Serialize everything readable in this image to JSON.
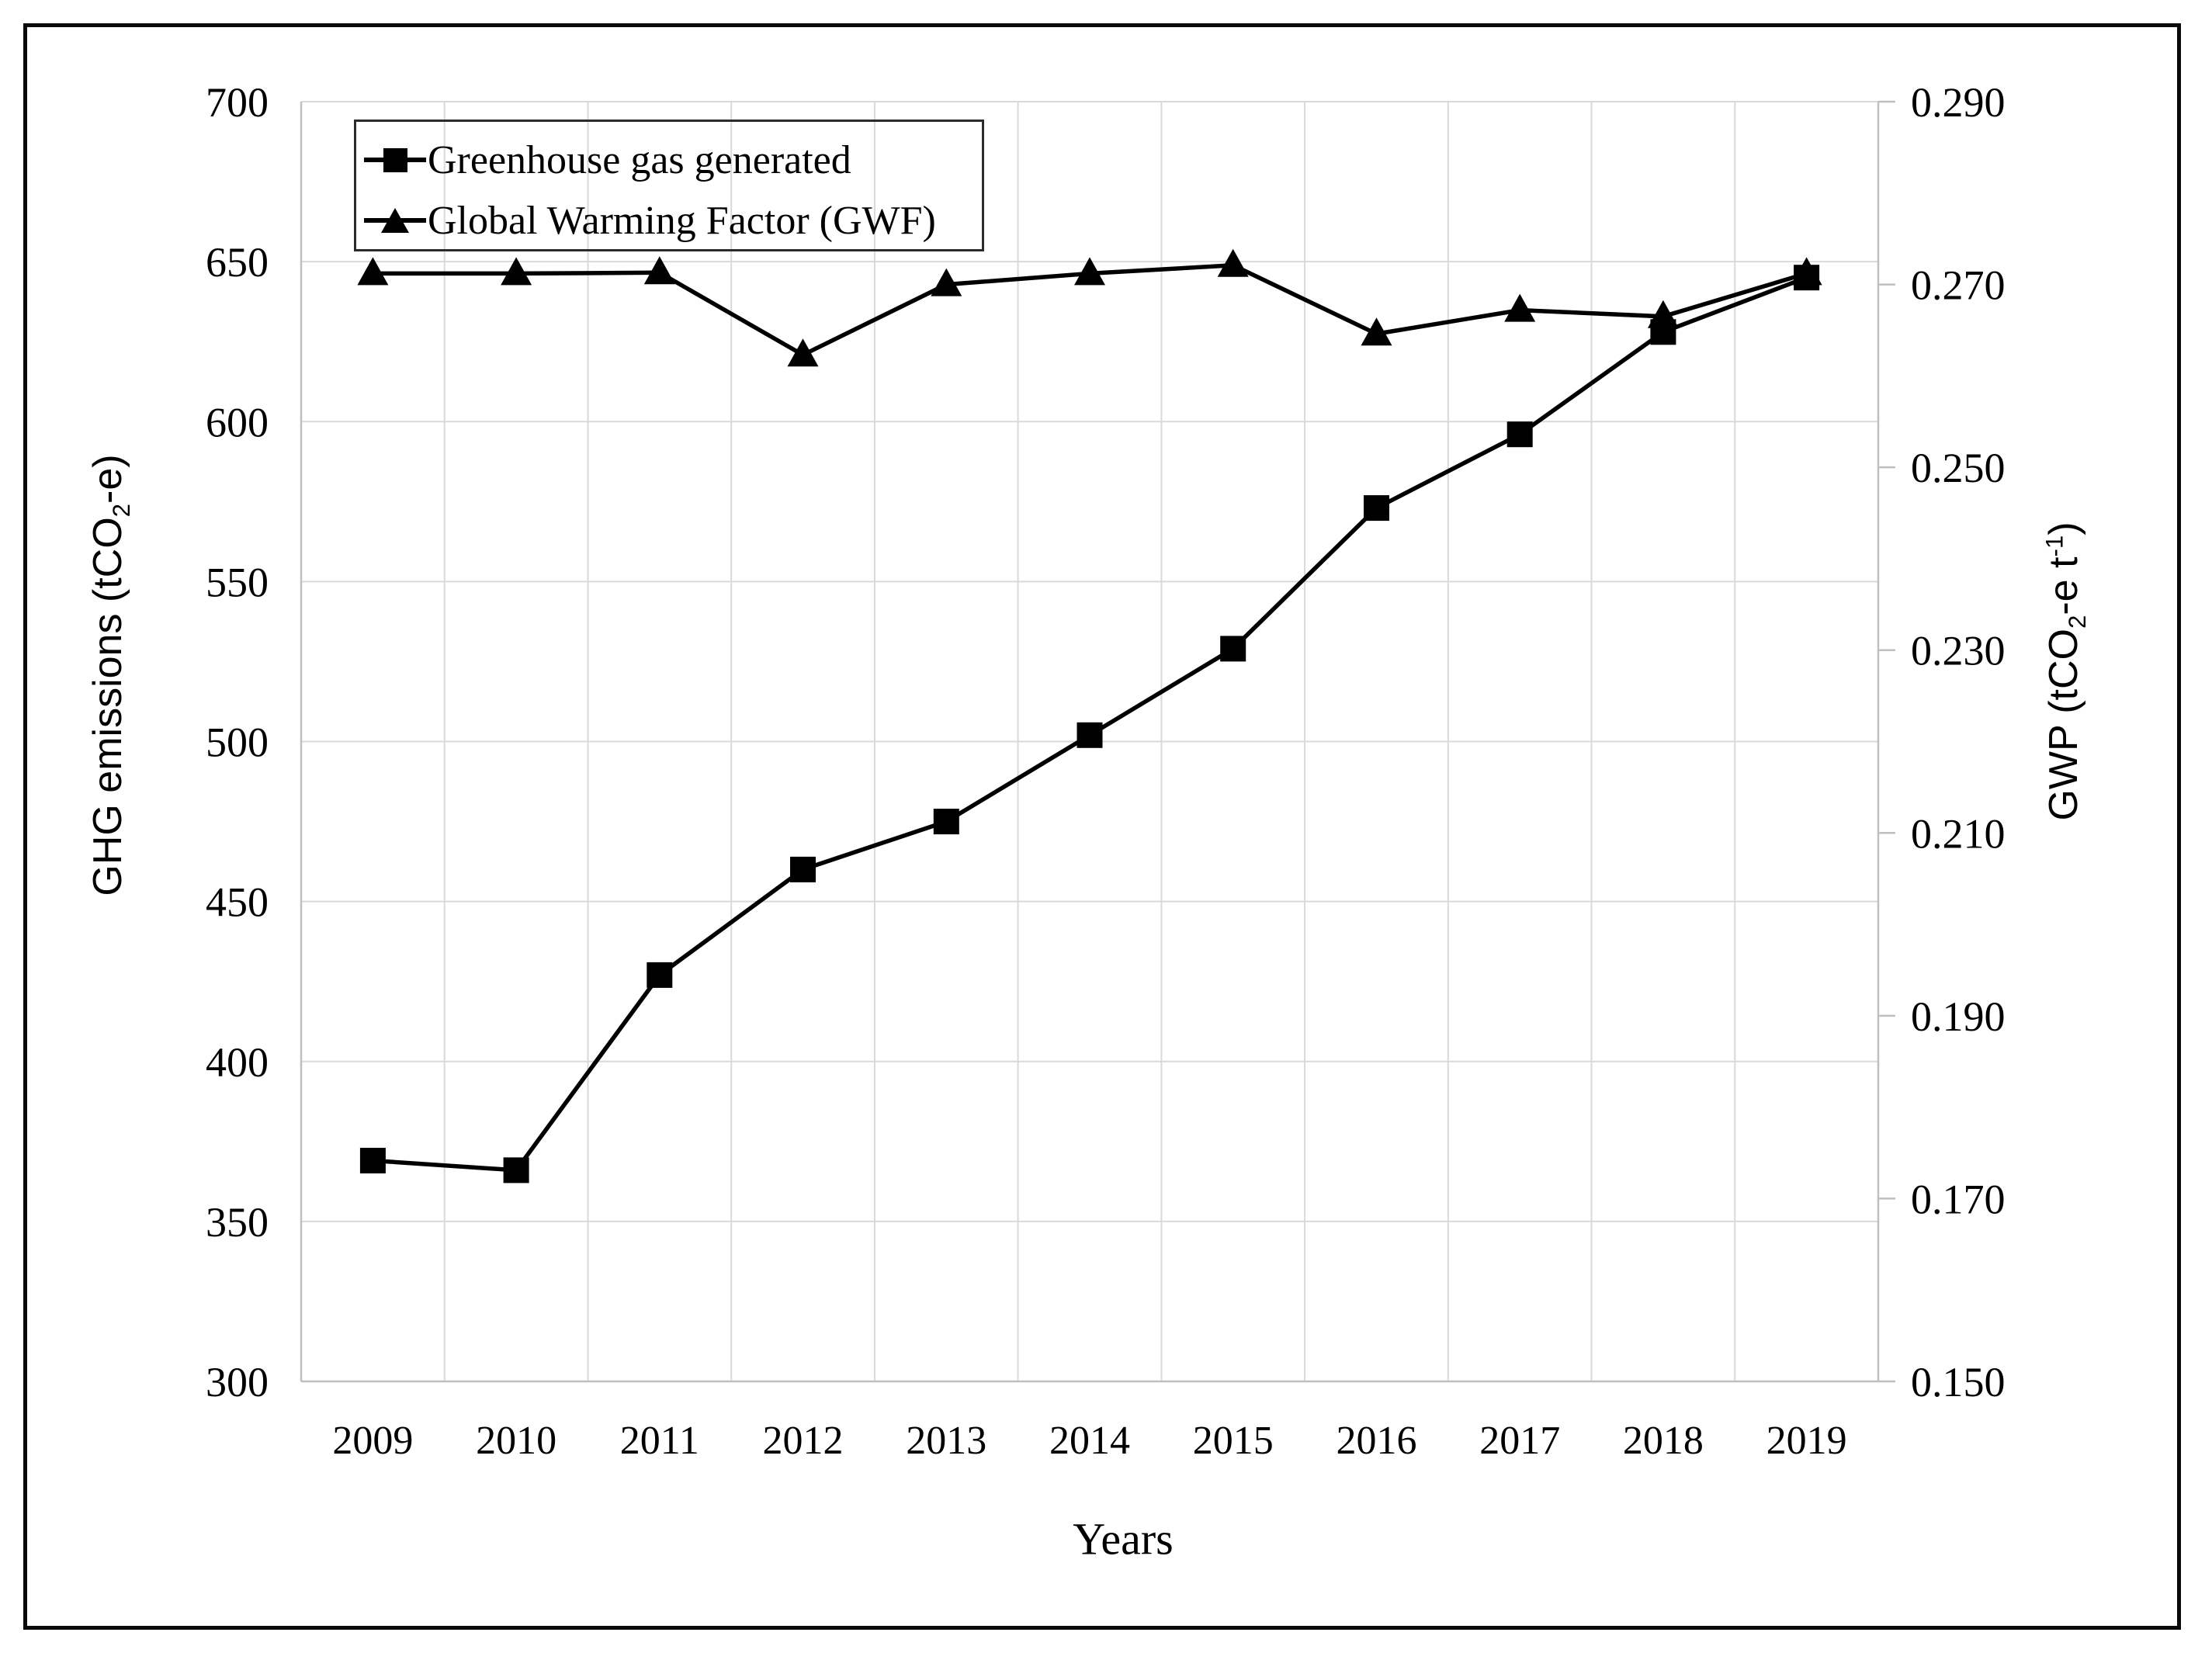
{
  "figure": {
    "background": "#ffffff",
    "frame_border_color": "#0a0a0a"
  },
  "colors": {
    "series": "#000000",
    "gridline": "#d9d9d9",
    "axis_line": "#bfbfbf",
    "text": "#000000",
    "legend_border": "#2b2b2b"
  },
  "legend": {
    "items": [
      {
        "label": "Greenhouse gas generated",
        "marker": "square-marker-icon"
      },
      {
        "label": "Global Warming Factor (GWF)",
        "marker": "triangle-marker-icon"
      }
    ]
  },
  "left_axis_title": {
    "pre": "GHG emissions (tCO",
    "sub": "2",
    "post": "-e)"
  },
  "right_axis_title": {
    "pre": "GWP (tCO",
    "sub": "2",
    "mid": "-e t",
    "sup": "-1",
    "post": ")"
  },
  "x_axis_title": "Years",
  "chart_data": {
    "type": "line",
    "title": "",
    "xlabel": "Years",
    "grid": true,
    "legend_position": "top-left",
    "categories": [
      "2009",
      "2010",
      "2011",
      "2012",
      "2013",
      "2014",
      "2015",
      "2016",
      "2017",
      "2018",
      "2019"
    ],
    "series": [
      {
        "name": "Greenhouse gas generated",
        "axis": "left",
        "marker": "square",
        "values": [
          369,
          366,
          427,
          460,
          475,
          502,
          529,
          573,
          596,
          628,
          645
        ]
      },
      {
        "name": "Global Warming Factor (GWF)",
        "axis": "right",
        "marker": "triangle",
        "values": [
          0.2712,
          0.2712,
          0.2713,
          0.2623,
          0.27,
          0.2712,
          0.2721,
          0.2646,
          0.2672,
          0.2665,
          0.2712
        ]
      }
    ],
    "left_axis": {
      "label": "GHG emissions (tCO2-e)",
      "min": 300,
      "max": 700,
      "step": 50,
      "tick_values": [
        700,
        650,
        600,
        550,
        500,
        450,
        400,
        350,
        300
      ],
      "tick_labels": [
        "700",
        "650",
        "600",
        "550",
        "500",
        "450",
        "400",
        "350",
        "300"
      ]
    },
    "right_axis": {
      "label": "GWP (tCO2-e t-1)",
      "min": 0.15,
      "max": 0.29,
      "step": 0.02,
      "tick_values": [
        0.29,
        0.27,
        0.25,
        0.23,
        0.21,
        0.19,
        0.17,
        0.15
      ],
      "tick_labels": [
        "0.290",
        "0.270",
        "0.250",
        "0.230",
        "0.210",
        "0.190",
        "0.170",
        "0.150"
      ]
    }
  }
}
